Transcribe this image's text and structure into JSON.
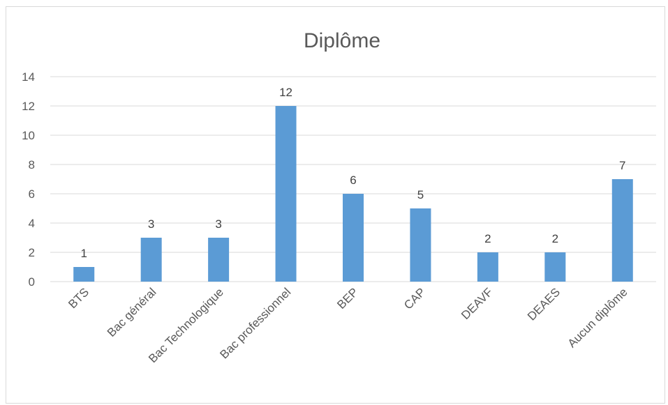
{
  "chart_data": {
    "type": "bar",
    "title": "Diplôme",
    "categories": [
      "BTS",
      "Bac général",
      "Bac Technologique",
      "Bac professionnel",
      "BEP",
      "CAP",
      "DEAVF",
      "DEAES",
      "Aucun diplôme"
    ],
    "values": [
      1,
      3,
      3,
      12,
      6,
      5,
      2,
      2,
      7
    ],
    "ylim": [
      0,
      14
    ],
    "yticks": [
      0,
      2,
      4,
      6,
      8,
      10,
      12,
      14
    ],
    "grid": true,
    "data_labels": true,
    "bar_color": "#5b9bd5"
  }
}
